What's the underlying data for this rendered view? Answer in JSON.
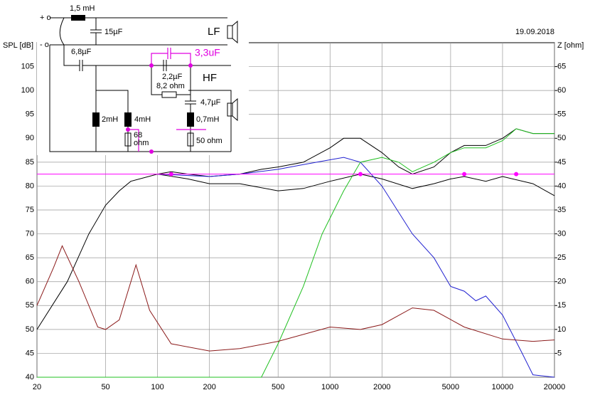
{
  "chart_data": {
    "type": "line",
    "ylabel": "SPL [dB]",
    "y2label": "Z [ohm]",
    "date": "19.09.2018",
    "xscale": "log",
    "grid": true,
    "xlim": [
      20,
      20000
    ],
    "xticks": [
      20,
      50,
      100,
      200,
      500,
      1000,
      2000,
      5000,
      10000,
      20000
    ],
    "ylim": [
      40,
      110
    ],
    "yticks": [
      40,
      45,
      50,
      55,
      60,
      65,
      70,
      75,
      80,
      85,
      90,
      95,
      100,
      105
    ],
    "y2lim": [
      0,
      70
    ],
    "y2ticks": [
      5,
      10,
      15,
      20,
      25,
      30,
      35,
      40,
      45,
      50,
      55,
      60,
      65
    ],
    "series": [
      {
        "color": "#000000",
        "x": [
          20,
          30,
          40,
          50,
          60,
          70,
          100,
          120,
          150,
          200,
          300,
          400,
          500,
          700,
          1000,
          1200,
          1500,
          2000,
          2500,
          3000,
          4000,
          5000,
          6000,
          8000,
          10000,
          12000,
          15000,
          20000
        ],
        "values": [
          50,
          60,
          70,
          76,
          79,
          81,
          82.5,
          83,
          82.5,
          82,
          82.5,
          83.5,
          84,
          85,
          88,
          90,
          90,
          87,
          84,
          82.5,
          84,
          87,
          88.5,
          88.5,
          90,
          92,
          91,
          91
        ]
      },
      {
        "color": "#000000",
        "x": [
          100,
          150,
          200,
          300,
          500,
          700,
          1000,
          1500,
          2000,
          3000,
          4000,
          5000,
          6000,
          8000,
          10000,
          15000,
          20000
        ],
        "values": [
          82.5,
          81.5,
          80.5,
          80.5,
          79,
          79.5,
          81,
          82.5,
          81.5,
          79.5,
          80.5,
          81.5,
          82,
          81,
          82,
          80.5,
          78
        ]
      },
      {
        "color": "#2020d0",
        "x": [
          100,
          200,
          300,
          500,
          700,
          1000,
          1200,
          1500,
          2000,
          3000,
          4000,
          5000,
          6000,
          7000,
          8000,
          10000,
          13000,
          15000,
          20000
        ],
        "values": [
          82.5,
          82,
          82.5,
          83.5,
          84.5,
          85.5,
          86,
          85,
          80,
          70,
          65,
          59,
          58,
          56,
          57,
          53,
          45,
          40.5,
          40
        ]
      },
      {
        "color": "#20c020",
        "x": [
          20,
          400,
          500,
          700,
          900,
          1200,
          1500,
          2000,
          2500,
          3000,
          4000,
          5000,
          6000,
          8000,
          10000,
          12000,
          15000,
          20000
        ],
        "values": [
          40,
          40,
          47,
          59,
          70,
          79,
          85,
          86,
          85,
          83,
          85,
          87,
          88,
          88,
          89.5,
          92,
          91,
          91
        ],
        "axis": "y"
      },
      {
        "color": "#8b1a1a",
        "axis": "y2",
        "x": [
          20,
          25,
          28,
          35,
          45,
          50,
          60,
          75,
          90,
          120,
          200,
          300,
          500,
          1000,
          1500,
          2000,
          3000,
          4000,
          6000,
          10000,
          15000,
          20000
        ],
        "values": [
          15,
          23,
          27.5,
          20,
          10.5,
          10,
          12,
          23.5,
          14,
          7,
          5.5,
          6,
          7.5,
          10.5,
          10,
          11,
          14.5,
          14,
          10.5,
          8,
          7.5,
          7.8
        ]
      }
    ],
    "reference": {
      "color": "#ff00ff",
      "value": 82.5,
      "markers_x": [
        120,
        1500,
        6000,
        12000
      ]
    }
  },
  "circuit": {
    "plus": "+ o",
    "minus": "- o",
    "l1": "1,5 mH",
    "c1": "15µF",
    "lf": "LF",
    "c2": "6,8µF",
    "c3": "3,3uF",
    "c4": "2,2µF",
    "r1": "8,2 ohm",
    "hf": "HF",
    "c5": "4,7µF",
    "l2": "2mH",
    "l3": "4mH",
    "l4": "0,7mH",
    "r2a": "68",
    "r2b": "ohm",
    "r3": "50 ohm"
  }
}
